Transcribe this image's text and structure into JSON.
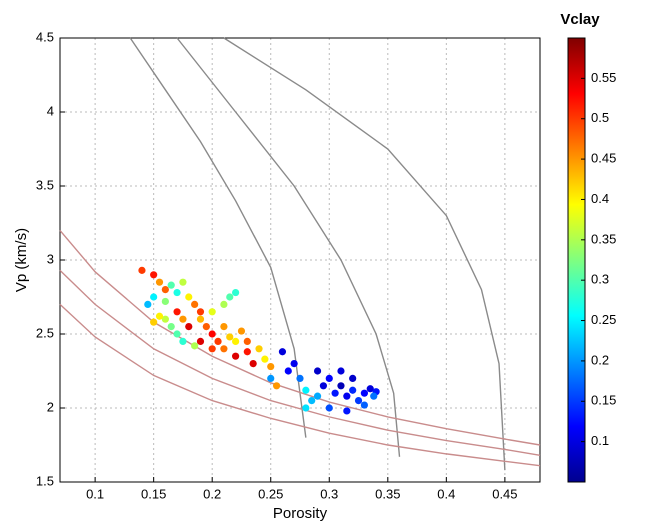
{
  "chart_data": {
    "type": "scatter",
    "xlabel": "Porosity",
    "ylabel": "Vp (km/s)",
    "xlim": [
      0.07,
      0.48
    ],
    "ylim": [
      1.5,
      4.5
    ],
    "xticks": [
      0.1,
      0.15,
      0.2,
      0.25,
      0.3,
      0.35,
      0.4,
      0.45
    ],
    "yticks": [
      1.5,
      2,
      2.5,
      3,
      3.5,
      4,
      4.5
    ],
    "grid": true,
    "series": [
      {
        "x": [
          0.14,
          0.15,
          0.155,
          0.16,
          0.165,
          0.17,
          0.15,
          0.145,
          0.16,
          0.175,
          0.18,
          0.185,
          0.19,
          0.17,
          0.175,
          0.18,
          0.19,
          0.195,
          0.2,
          0.205,
          0.21,
          0.2,
          0.21,
          0.215,
          0.22,
          0.19,
          0.2,
          0.21,
          0.215,
          0.22,
          0.225,
          0.23,
          0.23,
          0.22,
          0.165,
          0.16,
          0.155,
          0.15,
          0.17,
          0.175,
          0.185,
          0.24,
          0.245,
          0.25,
          0.235,
          0.26,
          0.265,
          0.27,
          0.275,
          0.28,
          0.285,
          0.29,
          0.295,
          0.3,
          0.305,
          0.31,
          0.315,
          0.32,
          0.325,
          0.33,
          0.335,
          0.34,
          0.32,
          0.31,
          0.3,
          0.315,
          0.33,
          0.338,
          0.29,
          0.28,
          0.25,
          0.255
        ],
        "values": [
          2.93,
          2.9,
          2.85,
          2.8,
          2.83,
          2.78,
          2.75,
          2.7,
          2.72,
          2.85,
          2.75,
          2.7,
          2.65,
          2.65,
          2.6,
          2.55,
          2.6,
          2.55,
          2.5,
          2.45,
          2.55,
          2.65,
          2.7,
          2.75,
          2.78,
          2.45,
          2.4,
          2.4,
          2.48,
          2.45,
          2.52,
          2.45,
          2.38,
          2.35,
          2.55,
          2.6,
          2.62,
          2.58,
          2.5,
          2.45,
          2.42,
          2.4,
          2.33,
          2.28,
          2.3,
          2.38,
          2.25,
          2.3,
          2.2,
          2.12,
          2.05,
          2.25,
          2.15,
          2.2,
          2.1,
          2.15,
          2.08,
          2.12,
          2.05,
          2.1,
          2.13,
          2.11,
          2.2,
          2.25,
          2.0,
          1.98,
          2.02,
          2.08,
          2.08,
          2.0,
          2.2,
          2.15
        ],
        "c": [
          0.5,
          0.52,
          0.45,
          0.48,
          0.3,
          0.27,
          0.25,
          0.22,
          0.33,
          0.36,
          0.4,
          0.47,
          0.5,
          0.52,
          0.45,
          0.55,
          0.43,
          0.48,
          0.53,
          0.5,
          0.45,
          0.38,
          0.35,
          0.3,
          0.28,
          0.55,
          0.5,
          0.47,
          0.42,
          0.4,
          0.45,
          0.48,
          0.52,
          0.55,
          0.32,
          0.36,
          0.4,
          0.42,
          0.3,
          0.28,
          0.35,
          0.42,
          0.4,
          0.45,
          0.55,
          0.1,
          0.12,
          0.11,
          0.18,
          0.25,
          0.22,
          0.09,
          0.1,
          0.12,
          0.13,
          0.08,
          0.11,
          0.14,
          0.15,
          0.12,
          0.1,
          0.13,
          0.09,
          0.1,
          0.16,
          0.13,
          0.17,
          0.18,
          0.21,
          0.24,
          0.2,
          0.45
        ]
      }
    ],
    "lines": [
      {
        "color": "#8a8a8a",
        "x": [
          0.13,
          0.16,
          0.19,
          0.22,
          0.25,
          0.27,
          0.28
        ],
        "values": [
          4.5,
          4.15,
          3.8,
          3.4,
          2.95,
          2.4,
          1.8
        ]
      },
      {
        "color": "#8a8a8a",
        "x": [
          0.17,
          0.22,
          0.27,
          0.31,
          0.34,
          0.355,
          0.36
        ],
        "values": [
          4.5,
          4.0,
          3.5,
          3.0,
          2.5,
          2.1,
          1.67
        ]
      },
      {
        "color": "#8a8a8a",
        "x": [
          0.21,
          0.28,
          0.35,
          0.4,
          0.43,
          0.445,
          0.45
        ],
        "values": [
          4.5,
          4.15,
          3.75,
          3.3,
          2.8,
          2.3,
          1.58
        ]
      },
      {
        "color": "#c98c8c",
        "x": [
          0.07,
          0.1,
          0.15,
          0.2,
          0.25,
          0.3,
          0.35,
          0.4,
          0.45,
          0.48
        ],
        "values": [
          2.7,
          2.48,
          2.22,
          2.05,
          1.93,
          1.83,
          1.75,
          1.69,
          1.64,
          1.61
        ]
      },
      {
        "color": "#c98c8c",
        "x": [
          0.07,
          0.1,
          0.15,
          0.2,
          0.25,
          0.3,
          0.35,
          0.4,
          0.45,
          0.48
        ],
        "values": [
          2.93,
          2.7,
          2.4,
          2.2,
          2.05,
          1.94,
          1.85,
          1.78,
          1.72,
          1.68
        ]
      },
      {
        "color": "#c98c8c",
        "x": [
          0.07,
          0.1,
          0.15,
          0.2,
          0.25,
          0.3,
          0.35,
          0.4,
          0.45,
          0.48
        ],
        "values": [
          3.2,
          2.92,
          2.58,
          2.35,
          2.17,
          2.04,
          1.94,
          1.86,
          1.79,
          1.75
        ]
      }
    ],
    "colorbar": {
      "title": "Vclay",
      "colormap": "jet",
      "lim": [
        0.05,
        0.6
      ],
      "ticks": [
        0.1,
        0.15,
        0.2,
        0.25,
        0.3,
        0.35,
        0.4,
        0.45,
        0.5,
        0.55
      ]
    }
  }
}
